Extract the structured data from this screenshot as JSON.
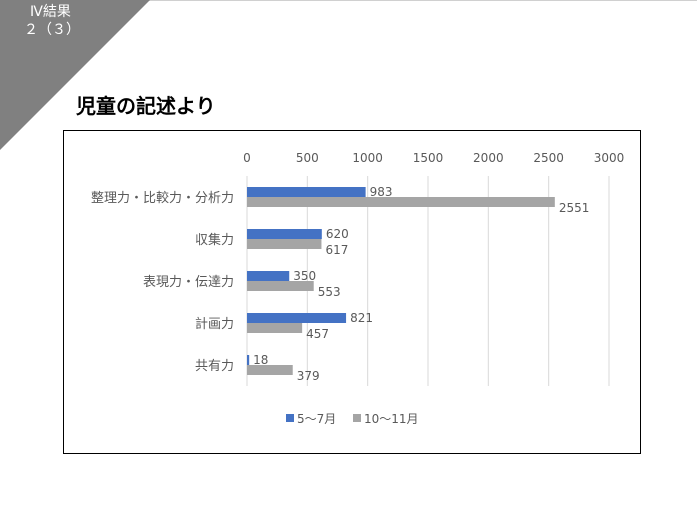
{
  "section": {
    "label": "Ⅳ結果",
    "sub": "２（３）"
  },
  "slide_title": "児童の記述より",
  "colors": {
    "corner": "#808080",
    "series1": "#4472C4",
    "series2": "#A5A5A5",
    "grid": "#D9D9D9",
    "text": "#595959"
  },
  "chart_data": {
    "type": "bar",
    "orientation": "horizontal",
    "categories": [
      "整理力・比較力・分析力",
      "収集力",
      "表現力・伝達力",
      "計画力",
      "共有力"
    ],
    "series": [
      {
        "name": "5～7月",
        "values": [
          983,
          620,
          350,
          821,
          18
        ]
      },
      {
        "name": "10～11月",
        "values": [
          2551,
          617,
          553,
          457,
          379
        ]
      }
    ],
    "xlim": [
      0,
      3000
    ],
    "x_ticks": [
      0,
      500,
      1000,
      1500,
      2000,
      2500,
      3000
    ],
    "x_axis_position": "top",
    "grid": true,
    "legend": "bottom",
    "data_labels": true
  }
}
